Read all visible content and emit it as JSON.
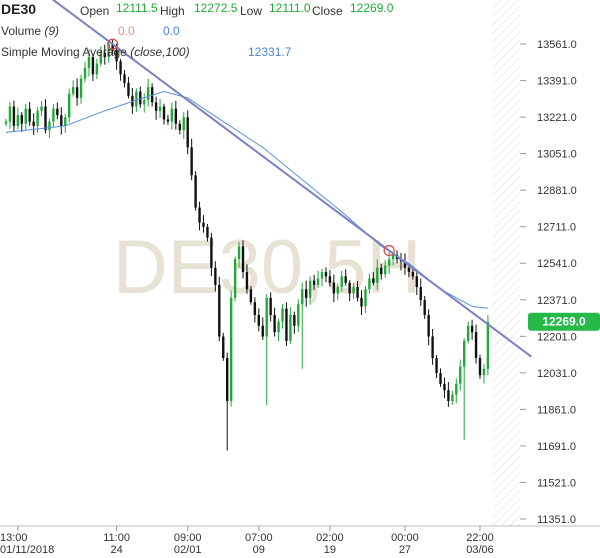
{
  "header": {
    "symbol": "DE30",
    "open_label": "Open",
    "open_value": "12111.5",
    "high_label": "High",
    "high_value": "12272.5",
    "low_label": "Low",
    "low_value": "12111.0",
    "close_label": "Close",
    "close_value": "12269.0",
    "volume_label": "Volume",
    "volume_param": "(9)",
    "volume_v1": "0.0",
    "volume_v2": "0.0",
    "sma_label": "Simple Moving Average",
    "sma_param": "(close,100)",
    "sma_value": "12331.7"
  },
  "watermark": "DE30,5H",
  "price_badge": "12269.0",
  "colors": {
    "up": "#22a838",
    "down": "#111111",
    "trendline": "#7a80c0",
    "sma": "#5a8fe0",
    "badge": "#27b84a",
    "marker": "#e05050"
  },
  "chart_data": {
    "type": "candlestick",
    "ylim": [
      11300,
      13680
    ],
    "yticks": [
      "13561.0",
      "13391.0",
      "13221.0",
      "13051.0",
      "12881.0",
      "12711.0",
      "12541.0",
      "12371.0",
      "12201.0",
      "12031.0",
      "11861.0",
      "11691.0",
      "11521.0",
      "11351.0"
    ],
    "ytick_values": [
      13561,
      13391,
      13221,
      13051,
      12881,
      12711,
      12541,
      12371,
      12201,
      12031,
      11861,
      11691,
      11521,
      11351
    ],
    "xticks": [
      {
        "time": "13:00",
        "date": "01/11/2018",
        "index": 3
      },
      {
        "time": "11:00",
        "date": "24",
        "index": 28
      },
      {
        "time": "09:00",
        "date": "02/01",
        "index": 46
      },
      {
        "time": "07:00",
        "date": "09",
        "index": 64
      },
      {
        "time": "02:00",
        "date": "19",
        "index": 82
      },
      {
        "time": "00:00",
        "date": "27",
        "index": 101
      },
      {
        "time": "22:00",
        "date": "03/06",
        "index": 120
      }
    ],
    "candle_count": 123,
    "closes": [
      13200,
      13270,
      13180,
      13230,
      13190,
      13260,
      13200,
      13180,
      13250,
      13270,
      13160,
      13200,
      13260,
      13230,
      13180,
      13220,
      13330,
      13360,
      13310,
      13400,
      13450,
      13500,
      13420,
      13470,
      13520,
      13500,
      13560,
      13530,
      13480,
      13420,
      13380,
      13320,
      13270,
      13340,
      13280,
      13300,
      13360,
      13290,
      13250,
      13270,
      13210,
      13200,
      13260,
      13190,
      13160,
      13220,
      13080,
      12950,
      12800,
      12730,
      12710,
      12660,
      12520,
      12440,
      12200,
      12100,
      11900,
      12380,
      12560,
      12620,
      12500,
      12420,
      12360,
      12300,
      12250,
      12200,
      12380,
      12300,
      12220,
      12270,
      12330,
      12180,
      12300,
      12250,
      12350,
      12420,
      12380,
      12460,
      12440,
      12470,
      12500,
      12480,
      12450,
      12400,
      12430,
      12480,
      12450,
      12400,
      12430,
      12380,
      12340,
      12420,
      12470,
      12450,
      12520,
      12490,
      12530,
      12560,
      12580,
      12560,
      12550,
      12520,
      12500,
      12480,
      12430,
      12370,
      12300,
      12200,
      12100,
      12030,
      11980,
      11950,
      11900,
      11930,
      11980,
      12060,
      12180,
      12250,
      12220,
      12100,
      12020,
      12050,
      12269
    ],
    "sma": [
      [
        0,
        13150
      ],
      [
        15,
        13180
      ],
      [
        25,
        13250
      ],
      [
        33,
        13300
      ],
      [
        40,
        13340
      ],
      [
        46,
        13310
      ],
      [
        55,
        13200
      ],
      [
        65,
        13080
      ],
      [
        75,
        12930
      ],
      [
        85,
        12780
      ],
      [
        95,
        12620
      ],
      [
        102,
        12540
      ],
      [
        110,
        12420
      ],
      [
        118,
        12340
      ],
      [
        122,
        12331.7
      ]
    ],
    "trendline": [
      [
        27,
        13560
      ],
      [
        97,
        12600
      ]
    ],
    "markers": [
      [
        27,
        13560
      ],
      [
        97,
        12600
      ]
    ],
    "last_close": 12269.0
  }
}
